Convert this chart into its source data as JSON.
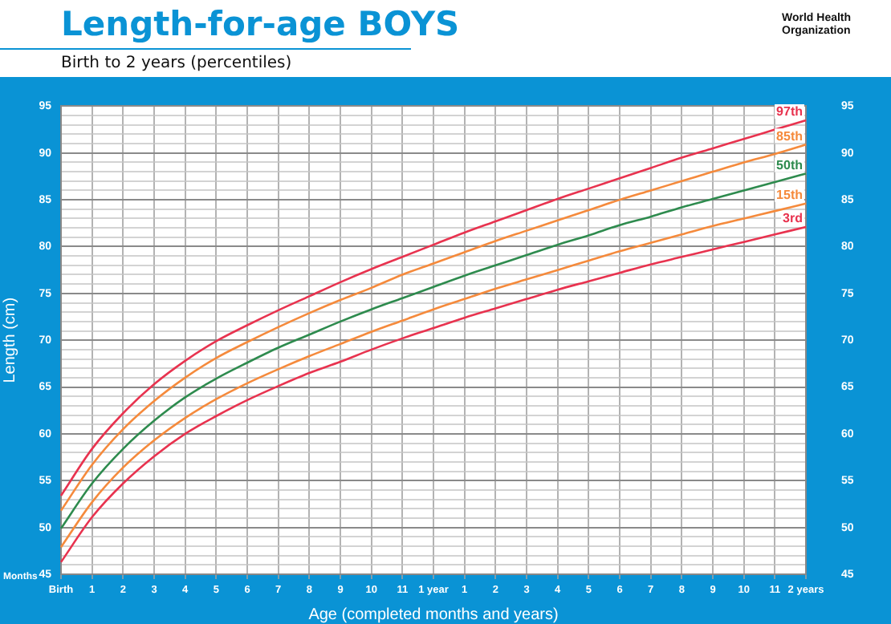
{
  "chart_data": {
    "type": "line",
    "title": "Length-for-age BOYS",
    "subtitle": "Birth to 2 years (percentiles)",
    "xlabel": "Age (completed months and years)",
    "ylabel": "Length (cm)",
    "annotations": [
      "World Health Organization",
      "Months"
    ],
    "categories": [
      "Birth",
      "1",
      "2",
      "3",
      "4",
      "5",
      "6",
      "7",
      "8",
      "9",
      "10",
      "11",
      "1 year",
      "1",
      "2",
      "3",
      "4",
      "5",
      "6",
      "7",
      "8",
      "9",
      "10",
      "11",
      "2 years"
    ],
    "series": [
      {
        "name": "97th",
        "color": "#e8334f",
        "values": [
          53.4,
          58.4,
          62.2,
          65.3,
          67.8,
          69.9,
          71.6,
          73.2,
          74.7,
          76.2,
          77.6,
          78.9,
          80.2,
          81.5,
          82.7,
          83.9,
          85.1,
          86.2,
          87.3,
          88.4,
          89.5,
          90.5,
          91.5,
          92.5,
          93.5
        ]
      },
      {
        "name": "85th",
        "color": "#f58a3c",
        "values": [
          51.8,
          56.7,
          60.5,
          63.5,
          66.0,
          68.1,
          69.8,
          71.4,
          72.9,
          74.3,
          75.6,
          77.0,
          78.2,
          79.4,
          80.6,
          81.7,
          82.8,
          83.9,
          85.0,
          86.0,
          87.0,
          88.0,
          89.0,
          89.9,
          90.9
        ]
      },
      {
        "name": "50th",
        "color": "#2e8b4e",
        "values": [
          49.9,
          54.7,
          58.4,
          61.4,
          63.9,
          65.9,
          67.6,
          69.2,
          70.6,
          72.0,
          73.3,
          74.5,
          75.7,
          76.9,
          78.0,
          79.1,
          80.2,
          81.2,
          82.3,
          83.2,
          84.2,
          85.1,
          86.0,
          86.9,
          87.8
        ]
      },
      {
        "name": "15th",
        "color": "#f58a3c",
        "values": [
          47.9,
          52.7,
          56.4,
          59.3,
          61.7,
          63.7,
          65.4,
          66.9,
          68.3,
          69.6,
          70.9,
          72.1,
          73.3,
          74.4,
          75.5,
          76.5,
          77.5,
          78.5,
          79.5,
          80.4,
          81.3,
          82.2,
          83.0,
          83.8,
          84.6
        ]
      },
      {
        "name": "3rd",
        "color": "#e8334f",
        "values": [
          46.3,
          51.1,
          54.7,
          57.6,
          60.0,
          61.9,
          63.6,
          65.1,
          66.5,
          67.7,
          69.0,
          70.2,
          71.3,
          72.4,
          73.4,
          74.4,
          75.4,
          76.3,
          77.2,
          78.1,
          78.9,
          79.7,
          80.5,
          81.3,
          82.1
        ]
      }
    ],
    "ylim": [
      45,
      95
    ],
    "yticks": [
      45,
      {
        "value": 46,
        "label": null
      },
      {
        "value": 47,
        "label": null
      },
      {
        "value": 48,
        "label": null
      },
      {
        "value": 49,
        "label": null
      },
      50,
      {
        "value": 51,
        "label": null
      },
      {
        "value": 52,
        "label": null
      },
      {
        "value": 53,
        "label": null
      },
      {
        "value": 54,
        "label": null
      },
      55,
      {
        "value": 56,
        "label": null
      },
      {
        "value": 57,
        "label": null
      },
      {
        "value": 58,
        "label": null
      },
      {
        "value": 59,
        "label": null
      },
      60,
      {
        "value": 61,
        "label": null
      },
      {
        "value": 62,
        "label": null
      },
      {
        "value": 63,
        "label": null
      },
      {
        "value": 64,
        "label": null
      },
      65,
      {
        "value": 66,
        "label": null
      },
      {
        "value": 67,
        "label": null
      },
      {
        "value": 68,
        "label": null
      },
      {
        "value": 69,
        "label": null
      },
      70,
      {
        "value": 71,
        "label": null
      },
      {
        "value": 72,
        "label": null
      },
      {
        "value": 73,
        "label": null
      },
      {
        "value": 74,
        "label": null
      },
      75,
      {
        "value": 76,
        "label": null
      },
      {
        "value": 77,
        "label": null
      },
      {
        "value": 78,
        "label": null
      },
      {
        "value": 79,
        "label": null
      },
      80,
      {
        "value": 81,
        "label": null
      },
      {
        "value": 82,
        "label": null
      },
      {
        "value": 83,
        "label": null
      },
      {
        "value": 84,
        "label": null
      },
      85,
      {
        "value": 86,
        "label": null
      },
      {
        "value": 87,
        "label": null
      },
      {
        "value": 88,
        "label": null
      },
      {
        "value": 89,
        "label": null
      },
      90,
      {
        "value": 91,
        "label": null
      },
      {
        "value": 92,
        "label": null
      },
      {
        "value": 93,
        "label": null
      },
      {
        "value": 94,
        "label": null
      },
      95
    ],
    "y2lim": [
      45,
      95
    ],
    "y2ticks": [
      45,
      50,
      55,
      60,
      65,
      70,
      75,
      80,
      85,
      90,
      95
    ],
    "grid": true,
    "legend": false,
    "marker": "none",
    "line_style": "solid"
  }
}
